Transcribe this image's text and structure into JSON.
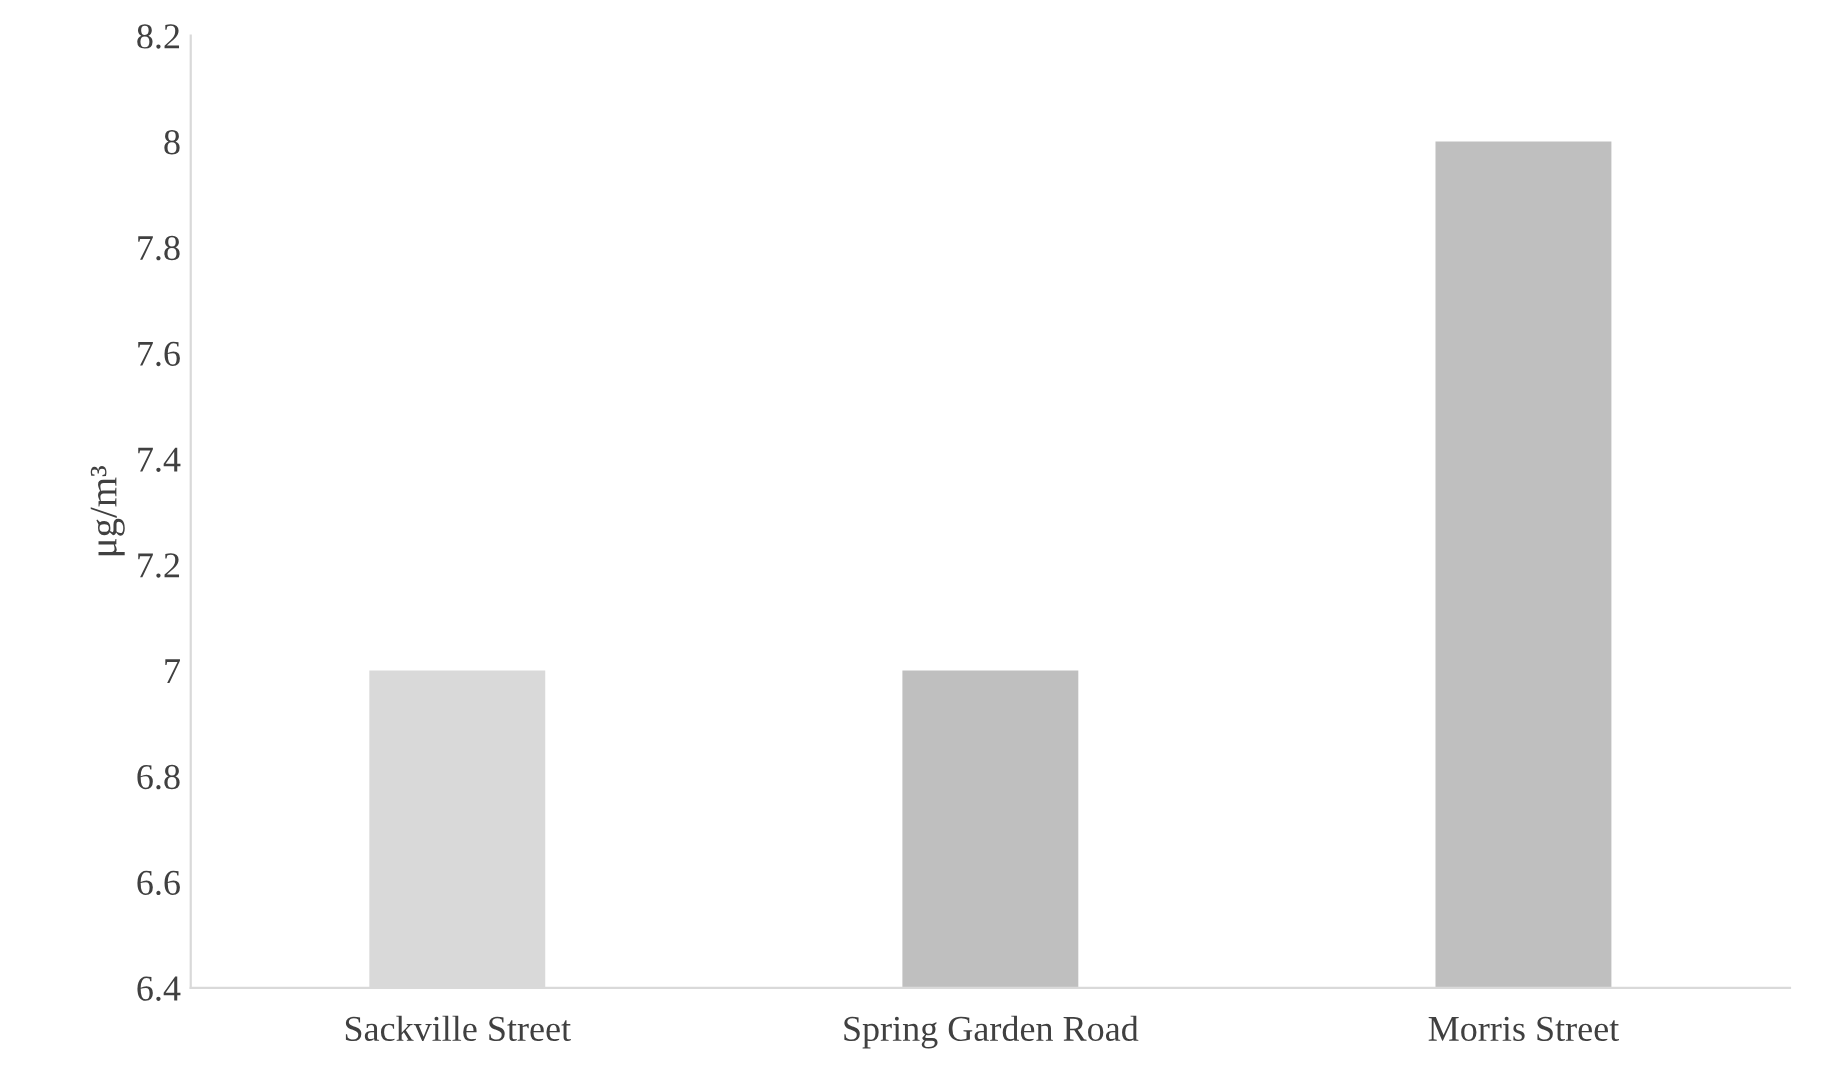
{
  "chart_data": {
    "type": "bar",
    "ylabel": "μg/m³",
    "categories": [
      "Sackville Street",
      "Spring Garden Road",
      "Morris Street"
    ],
    "values": [
      7,
      7,
      8
    ],
    "colors": [
      "#d9d9d9",
      "#bfbfbf",
      "#bfbfbf"
    ],
    "ylim": [
      6.4,
      8.2
    ],
    "yticks": [
      6.4,
      6.6,
      6.8,
      7,
      7.2,
      7.4,
      7.6,
      7.8,
      8,
      8.2
    ],
    "grid": false,
    "legend": false
  }
}
